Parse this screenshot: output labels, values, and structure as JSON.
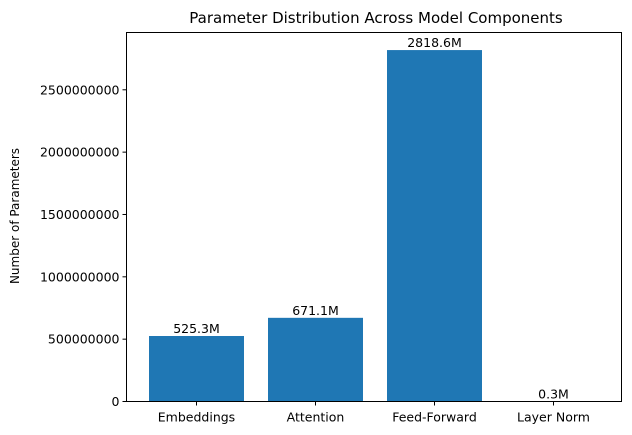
{
  "chart_data": {
    "type": "bar",
    "title": "Parameter Distribution Across Model Components",
    "xlabel": "",
    "ylabel": "Number of Parameters",
    "categories": [
      "Embeddings",
      "Attention",
      "Feed-Forward",
      "Layer Norm"
    ],
    "values": [
      525300000,
      671100000,
      2818600000,
      300000
    ],
    "data_labels": [
      "525.3M",
      "671.1M",
      "2818.6M",
      "0.3M"
    ],
    "ylim": [
      0,
      2959530000
    ],
    "yticks": [
      0,
      500000000,
      1000000000,
      1500000000,
      2000000000,
      2500000000
    ],
    "ytick_labels": [
      "0",
      "500000000",
      "1000000000",
      "1500000000",
      "2000000000",
      "2500000000"
    ],
    "bar_color": "#1f77b4",
    "grid": false,
    "legend": "none"
  }
}
